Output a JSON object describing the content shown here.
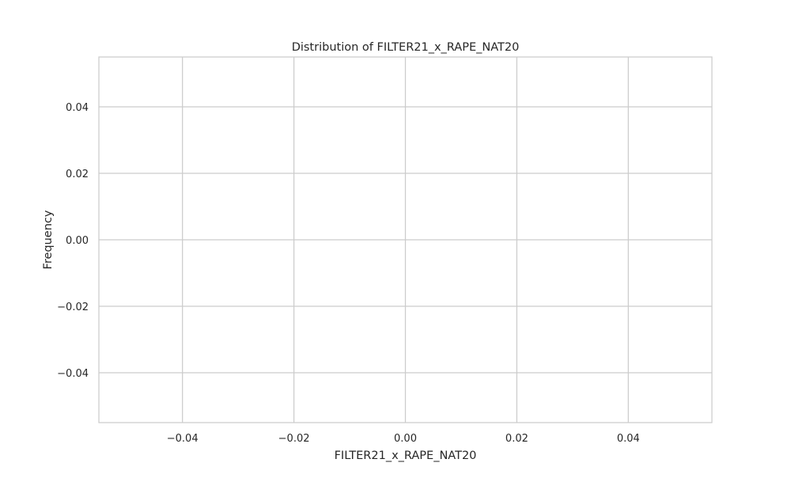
{
  "chart_data": {
    "type": "bar",
    "title": "Distribution of FILTER21_x_RAPE_NAT20",
    "xlabel": "FILTER21_x_RAPE_NAT20",
    "ylabel": "Frequency",
    "xlim": [
      -0.055,
      0.055
    ],
    "ylim": [
      -0.055,
      0.055
    ],
    "xticks": [
      -0.04,
      -0.02,
      0.0,
      0.02,
      0.04
    ],
    "xtick_labels": [
      "−0.04",
      "−0.02",
      "0.00",
      "0.02",
      "0.04"
    ],
    "yticks": [
      -0.04,
      -0.02,
      0.0,
      0.02,
      0.04
    ],
    "ytick_labels": [
      "−0.04",
      "−0.02",
      "0.00",
      "0.02",
      "0.04"
    ],
    "grid": true,
    "series": [],
    "values": [],
    "colors": {
      "grid": "#cccccc",
      "spine": "#cccccc",
      "text": "#262626",
      "background": "#ffffff"
    }
  }
}
